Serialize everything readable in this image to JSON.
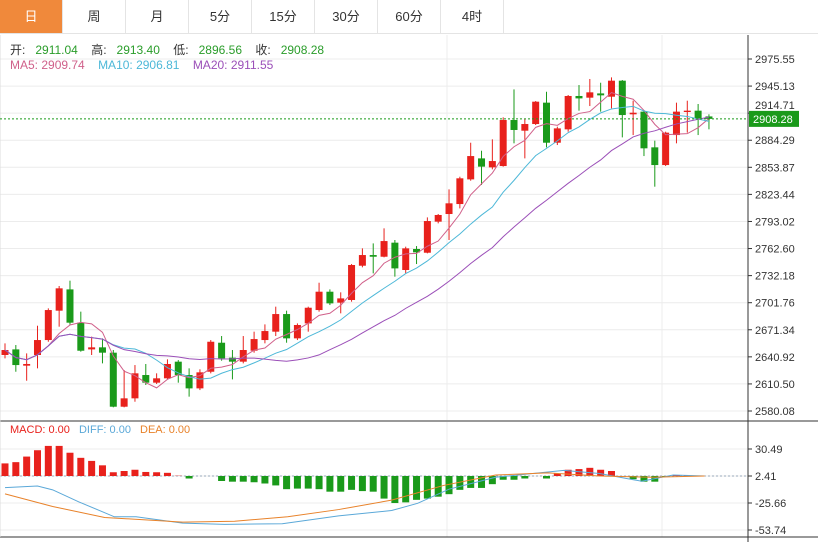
{
  "tabs": [
    {
      "label": "日",
      "active": true
    },
    {
      "label": "周"
    },
    {
      "label": "月"
    },
    {
      "label": "5分"
    },
    {
      "label": "15分"
    },
    {
      "label": "30分"
    },
    {
      "label": "60分"
    },
    {
      "label": "4时"
    }
  ],
  "ohlc_info": {
    "open_label": "开:",
    "open": "2911.04",
    "high_label": "高:",
    "high": "2913.40",
    "low_label": "低:",
    "low": "2896.56",
    "close_label": "收:",
    "close": "2908.28"
  },
  "ma_info": {
    "ma5": "MA5: 2909.74",
    "ma10": "MA10: 2906.81",
    "ma20": "MA20: 2911.55"
  },
  "macd_info": {
    "macd": "MACD: 0.00",
    "diff": "DIFF: 0.00",
    "dea": "DEA: 0.00"
  },
  "colors": {
    "up": "#e8211c",
    "down": "#1a9a1a",
    "ma5": "#d0608a",
    "ma10": "#4db8d8",
    "ma20": "#9b4fb8",
    "diff": "#5aa8d8",
    "dea": "#e8822a",
    "accent": "#f0893b",
    "last_price": "#1a9a1a"
  },
  "chart_data": [
    {
      "type": "candlestick",
      "yticks": [
        "2975.55",
        "2945.13",
        "2914.71",
        "2884.29",
        "2853.87",
        "2823.44",
        "2793.02",
        "2762.60",
        "2732.18",
        "2701.76",
        "2671.34",
        "2640.92",
        "2610.50",
        "2580.08"
      ],
      "ylim": [
        2580.08,
        2975.55
      ],
      "last_price": "2908.28",
      "grid": true,
      "candles": [
        [
          2643.0,
          2656.1,
          2639.2,
          2648.6
        ],
        [
          2649.3,
          2654.2,
          2624.2,
          2631.7
        ],
        [
          2631.0,
          2644.8,
          2614.1,
          2632.9
        ],
        [
          2643.0,
          2675.9,
          2628.0,
          2659.8
        ],
        [
          2659.8,
          2695.4,
          2657.9,
          2693.5
        ],
        [
          2692.8,
          2720.5,
          2674.8,
          2717.9
        ],
        [
          2716.7,
          2726.5,
          2676.7,
          2679.3
        ],
        [
          2679.3,
          2691.7,
          2646.7,
          2647.8
        ],
        [
          2649.3,
          2663.6,
          2643.0,
          2651.6
        ],
        [
          2651.6,
          2661.7,
          2633.6,
          2645.6
        ],
        [
          2645.6,
          2648.6,
          2584.2,
          2584.9
        ],
        [
          2584.9,
          2626.1,
          2584.2,
          2594.3
        ],
        [
          2594.3,
          2631.7,
          2590.5,
          2622.4
        ],
        [
          2620.5,
          2632.9,
          2609.3,
          2611.9
        ],
        [
          2611.9,
          2622.4,
          2610.4,
          2616.8
        ],
        [
          2616.8,
          2638.1,
          2615.6,
          2632.9
        ],
        [
          2635.5,
          2637.3,
          2611.9,
          2620.5
        ],
        [
          2620.5,
          2628.0,
          2596.2,
          2605.5
        ],
        [
          2605.5,
          2626.9,
          2603.6,
          2623.5
        ],
        [
          2624.2,
          2659.8,
          2622.4,
          2657.9
        ],
        [
          2656.8,
          2664.3,
          2636.6,
          2639.2
        ],
        [
          2640.0,
          2648.6,
          2615.6,
          2635.5
        ],
        [
          2635.5,
          2664.3,
          2633.6,
          2648.6
        ],
        [
          2647.8,
          2669.2,
          2645.6,
          2660.9
        ],
        [
          2659.8,
          2677.4,
          2656.1,
          2669.9
        ],
        [
          2669.2,
          2697.3,
          2664.3,
          2689.0
        ],
        [
          2689.0,
          2692.8,
          2656.8,
          2661.7
        ],
        [
          2661.7,
          2678.5,
          2659.8,
          2676.7
        ],
        [
          2678.5,
          2697.3,
          2669.2,
          2696.1
        ],
        [
          2693.5,
          2724.2,
          2691.7,
          2714.1
        ],
        [
          2714.1,
          2716.7,
          2699.1,
          2701.0
        ],
        [
          2701.8,
          2713.4,
          2689.8,
          2706.6
        ],
        [
          2704.8,
          2745.2,
          2702.9,
          2744.1
        ],
        [
          2743.3,
          2762.8,
          2741.5,
          2755.3
        ],
        [
          2755.3,
          2768.4,
          2734.7,
          2753.4
        ],
        [
          2753.4,
          2785.3,
          2752.7,
          2771.0
        ],
        [
          2769.2,
          2772.2,
          2731.0,
          2740.3
        ],
        [
          2738.5,
          2764.7,
          2734.7,
          2762.8
        ],
        [
          2762.1,
          2765.4,
          2745.2,
          2758.3
        ],
        [
          2757.9,
          2797.6,
          2757.2,
          2793.5
        ],
        [
          2792.8,
          2801.4,
          2790.9,
          2800.3
        ],
        [
          2801.4,
          2829.1,
          2772.2,
          2813.4
        ],
        [
          2812.6,
          2843.3,
          2807.7,
          2841.5
        ],
        [
          2840.3,
          2881.5,
          2838.8,
          2866.5
        ],
        [
          2863.9,
          2872.5,
          2834.0,
          2854.6
        ],
        [
          2853.8,
          2885.3,
          2851.6,
          2860.9
        ],
        [
          2855.3,
          2910.0,
          2854.6,
          2907.0
        ],
        [
          2907.0,
          2941.4,
          2880.8,
          2895.8
        ],
        [
          2895.0,
          2907.7,
          2863.9,
          2902.5
        ],
        [
          2902.5,
          2928.3,
          2901.4,
          2927.6
        ],
        [
          2926.5,
          2938.8,
          2876.3,
          2881.5
        ],
        [
          2881.5,
          2899.5,
          2878.9,
          2897.6
        ],
        [
          2896.5,
          2935.1,
          2893.9,
          2934.0
        ],
        [
          2934.0,
          2946.3,
          2917.5,
          2931.3
        ],
        [
          2932.1,
          2953.1,
          2922.7,
          2938.1
        ],
        [
          2936.9,
          2948.9,
          2916.4,
          2934.7
        ],
        [
          2933.2,
          2954.9,
          2920.1,
          2951.2
        ],
        [
          2951.2,
          2951.9,
          2887.5,
          2912.6
        ],
        [
          2913.4,
          2928.7,
          2890.1,
          2915.2
        ],
        [
          2916.4,
          2918.2,
          2866.5,
          2875.2
        ],
        [
          2876.3,
          2883.8,
          2832.1,
          2856.4
        ],
        [
          2856.4,
          2893.9,
          2855.3,
          2892.8
        ],
        [
          2890.1,
          2926.5,
          2880.8,
          2916.4
        ],
        [
          2916.0,
          2928.7,
          2892.8,
          2917.5
        ],
        [
          2917.5,
          2925.0,
          2890.1,
          2908.9
        ],
        [
          2911.04,
          2913.4,
          2896.56,
          2908.28
        ]
      ],
      "ma_periods": [
        5,
        10,
        20
      ]
    },
    {
      "type": "bar+line",
      "name": "MACD",
      "yticks": [
        "30.49",
        "2.41",
        "-25.66",
        "-53.74"
      ],
      "histogram": [
        13.1,
        14.4,
        20.2,
        26.8,
        31.3,
        31.3,
        24.2,
        18.9,
        15.7,
        11.1,
        3.9,
        5.2,
        6.5,
        4.2,
        3.9,
        3.3,
        0.3,
        -2.6,
        0,
        0,
        -5.2,
        -5.9,
        -5.9,
        -6.5,
        -7.8,
        -9.8,
        -13.7,
        -13.1,
        -13.1,
        -13.7,
        -16.3,
        -16.3,
        -14.4,
        -15.7,
        -16.3,
        -23.5,
        -28.1,
        -27.4,
        -24.8,
        -23.5,
        -21.5,
        -18.9,
        -14.4,
        -12.4,
        -12.4,
        -8.5,
        -3.9,
        -3.9,
        -2.6,
        0,
        -2.6,
        2.6,
        6.5,
        7.2,
        8.5,
        6.5,
        5.2,
        0,
        -3.3,
        -5.9,
        -5.9,
        -1,
        1,
        0.5,
        0,
        0
      ],
      "diff": [
        [
          0,
          -9.7
        ],
        [
          3,
          -8.0
        ],
        [
          4.4,
          -12
        ],
        [
          6.8,
          -24.4
        ],
        [
          10.1,
          -40
        ],
        [
          12.1,
          -40
        ],
        [
          16.4,
          -46.6
        ],
        [
          20.3,
          -47.9
        ],
        [
          25.6,
          -47.2
        ],
        [
          30.8,
          -39.1
        ],
        [
          35.7,
          -33.5
        ],
        [
          38.1,
          -26
        ],
        [
          41,
          -11.3
        ],
        [
          45.3,
          1.1
        ],
        [
          51.6,
          8.3
        ],
        [
          54.9,
          5.0
        ],
        [
          58.8,
          -3.1
        ],
        [
          61.7,
          3.4
        ],
        [
          64.6,
          2.4
        ]
      ],
      "dea": [
        [
          0,
          -16.2
        ],
        [
          4.4,
          -29.3
        ],
        [
          9.2,
          -40.7
        ],
        [
          16.4,
          -45.6
        ],
        [
          21.2,
          -44.6
        ],
        [
          26.1,
          -40.0
        ],
        [
          30.8,
          -32.5
        ],
        [
          35.7,
          -22.7
        ],
        [
          40.5,
          -7.4
        ],
        [
          45.3,
          3.4
        ],
        [
          50.1,
          5.7
        ],
        [
          54.9,
          2.4
        ],
        [
          59.7,
          1.1
        ],
        [
          64.6,
          2.4
        ]
      ]
    }
  ]
}
